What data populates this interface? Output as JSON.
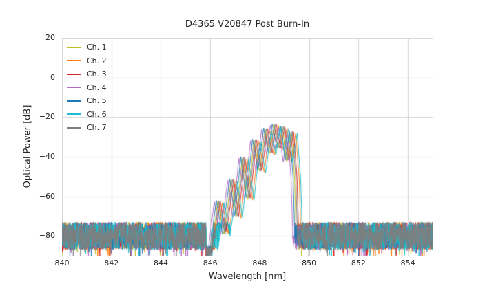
{
  "chart_data": {
    "type": "line",
    "title": "D4365 V20847 Post Burn-In",
    "xlabel": "Wavelength [nm]",
    "ylabel": "Optical Power [dB]",
    "xlim": [
      840,
      855
    ],
    "ylim": [
      -90,
      20
    ],
    "xticks": [
      840,
      842,
      844,
      846,
      848,
      850,
      852,
      854
    ],
    "yticks": [
      20,
      0,
      -20,
      -40,
      -60,
      -80
    ],
    "grid": true,
    "grid_color": "#d4d4d4",
    "background": "#ffffff",
    "legend_position": "upper left",
    "noise_floor_db": -80,
    "noise_spread_db": 7,
    "notch": {
      "x_start": 845.84,
      "x_end": 846.08,
      "floor_db": -88,
      "spread_db": 3
    },
    "envelope": [
      [
        845.7,
        -96
      ],
      [
        846.05,
        -90
      ],
      [
        846.33,
        -62
      ],
      [
        846.58,
        -79
      ],
      [
        846.88,
        -51
      ],
      [
        847.08,
        -70
      ],
      [
        847.33,
        -40
      ],
      [
        847.55,
        -61
      ],
      [
        847.8,
        -31
      ],
      [
        848.02,
        -47
      ],
      [
        848.25,
        -25.5
      ],
      [
        848.44,
        -38
      ],
      [
        848.6,
        -23.3
      ],
      [
        848.78,
        -35.5
      ],
      [
        848.95,
        -24.5
      ],
      [
        849.12,
        -42
      ],
      [
        849.3,
        -27
      ],
      [
        849.44,
        -50
      ],
      [
        849.55,
        -96
      ]
    ],
    "series": [
      {
        "name": "Ch. 1",
        "color": "#bcbd22",
        "shift_nm": -0.03,
        "peak_adj_db": -0.5
      },
      {
        "name": "Ch. 2",
        "color": "#ff7f0e",
        "shift_nm": 0.16,
        "peak_adj_db": -1.0
      },
      {
        "name": "Ch. 3",
        "color": "#d62728",
        "shift_nm": 0.07,
        "peak_adj_db": -0.3
      },
      {
        "name": "Ch. 4",
        "color": "#b06bc4",
        "shift_nm": -0.17,
        "peak_adj_db": -0.8
      },
      {
        "name": "Ch. 5",
        "color": "#1f77b4",
        "shift_nm": -0.09,
        "peak_adj_db": 0.0
      },
      {
        "name": "Ch. 6",
        "color": "#17becf",
        "shift_nm": 0.22,
        "peak_adj_db": -1.2
      },
      {
        "name": "Ch. 7",
        "color": "#7f7f7f",
        "shift_nm": 0.02,
        "peak_adj_db": -0.2
      }
    ]
  }
}
